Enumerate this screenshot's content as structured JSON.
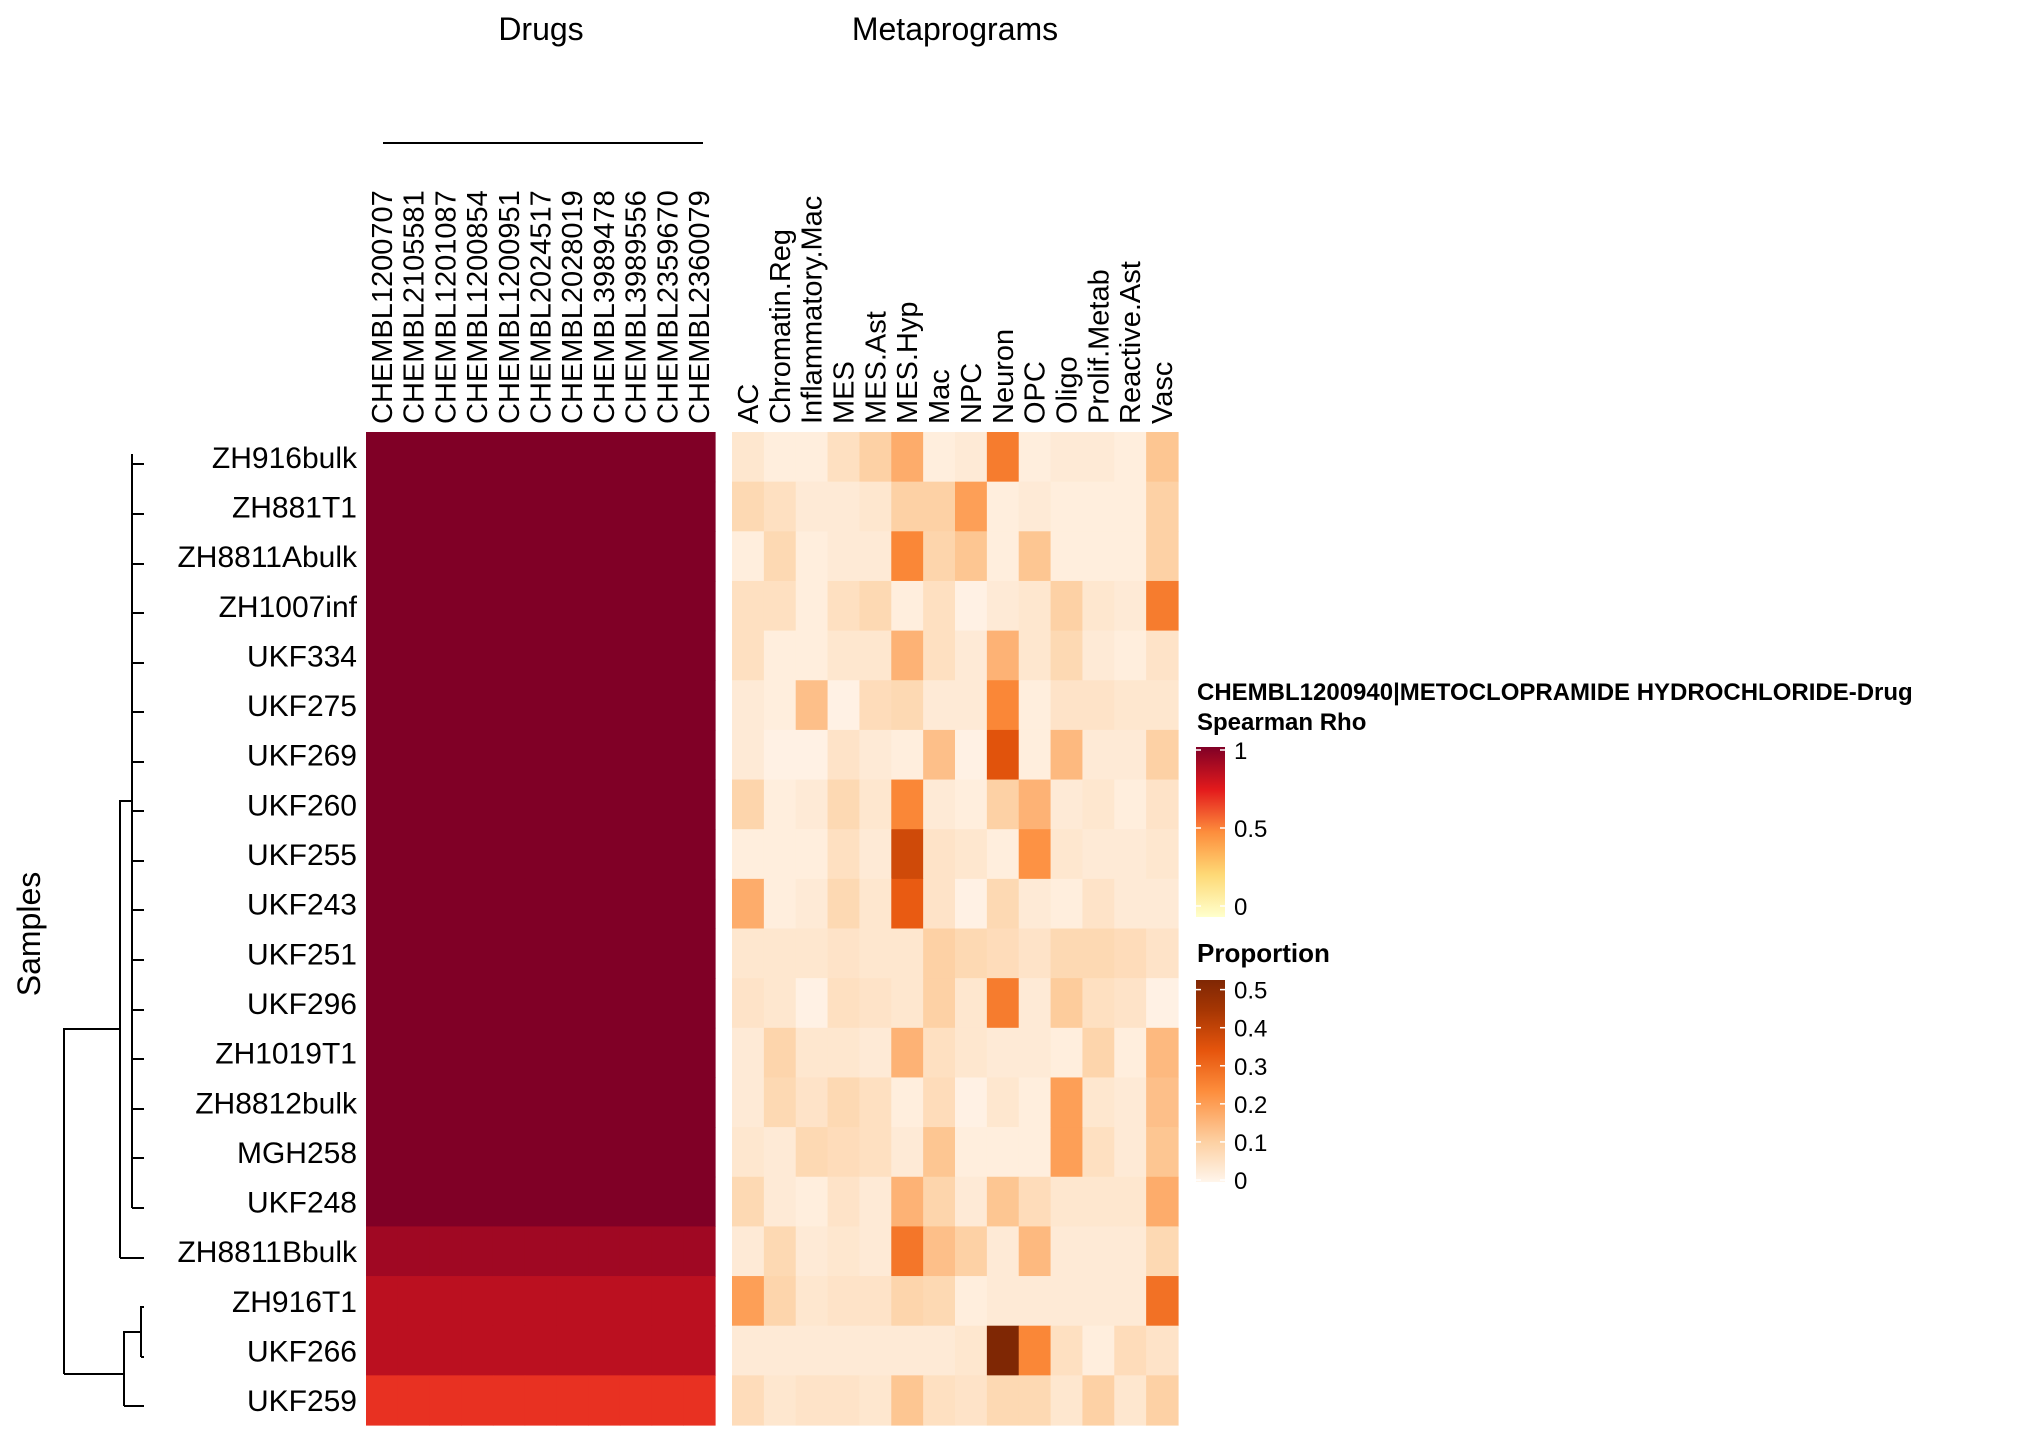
{
  "chart_data": {
    "type": "heatmap",
    "group_titles": {
      "drugs": "Drugs",
      "metaprograms": "Metaprograms"
    },
    "ylabel": "Samples",
    "samples": [
      "ZH916bulk",
      "ZH881T1",
      "ZH8811Abulk",
      "ZH1007inf",
      "UKF334",
      "UKF275",
      "UKF269",
      "UKF260",
      "UKF255",
      "UKF243",
      "UKF251",
      "UKF296",
      "ZH1019T1",
      "ZH8812bulk",
      "MGH258",
      "UKF248",
      "ZH8811Bbulk",
      "ZH916T1",
      "UKF266",
      "UKF259"
    ],
    "drugs": [
      "CHEMBL1200707",
      "CHEMBL2105581",
      "CHEMBL1201087",
      "CHEMBL1200854",
      "CHEMBL1200951",
      "CHEMBL2024517",
      "CHEMBL2028019",
      "CHEMBL3989478",
      "CHEMBL3989556",
      "CHEMBL2359670",
      "CHEMBL2360079"
    ],
    "metaprograms": [
      "AC",
      "Chromatin.Reg",
      "Inflammatory.Mac",
      "MES",
      "MES.Ast",
      "MES.Hyp",
      "Mac",
      "NPC",
      "Neuron",
      "OPC",
      "Oligo",
      "Prolif.Metab",
      "Reactive.Ast",
      "Vasc"
    ],
    "drug_rho": [
      1,
      1,
      1,
      1,
      1,
      1,
      1,
      1,
      1,
      1,
      1,
      1,
      1,
      1,
      1,
      1,
      0.92,
      0.85,
      0.85,
      0.7
    ],
    "proportions": [
      [
        0.04,
        0.02,
        0.02,
        0.06,
        0.1,
        0.16,
        0.02,
        0.03,
        0.24,
        0.02,
        0.03,
        0.03,
        0.02,
        0.12
      ],
      [
        0.08,
        0.06,
        0.03,
        0.03,
        0.04,
        0.1,
        0.1,
        0.18,
        0.02,
        0.03,
        0.02,
        0.02,
        0.02,
        0.1
      ],
      [
        0.02,
        0.08,
        0.02,
        0.03,
        0.03,
        0.22,
        0.09,
        0.12,
        0.02,
        0.12,
        0.02,
        0.02,
        0.02,
        0.1
      ],
      [
        0.06,
        0.06,
        0.02,
        0.06,
        0.08,
        0.02,
        0.06,
        0.01,
        0.03,
        0.04,
        0.1,
        0.04,
        0.03,
        0.24
      ],
      [
        0.06,
        0.02,
        0.02,
        0.04,
        0.04,
        0.15,
        0.06,
        0.03,
        0.15,
        0.04,
        0.08,
        0.03,
        0.02,
        0.05
      ],
      [
        0.03,
        0.02,
        0.13,
        0.01,
        0.07,
        0.08,
        0.03,
        0.03,
        0.22,
        0.02,
        0.05,
        0.05,
        0.04,
        0.04
      ],
      [
        0.03,
        0.01,
        0.01,
        0.05,
        0.03,
        0.02,
        0.13,
        0.01,
        0.32,
        0.02,
        0.14,
        0.03,
        0.03,
        0.1
      ],
      [
        0.09,
        0.02,
        0.03,
        0.08,
        0.04,
        0.22,
        0.03,
        0.02,
        0.1,
        0.15,
        0.03,
        0.04,
        0.02,
        0.05
      ],
      [
        0.02,
        0.02,
        0.02,
        0.06,
        0.03,
        0.35,
        0.05,
        0.04,
        0.02,
        0.2,
        0.04,
        0.03,
        0.03,
        0.04
      ],
      [
        0.16,
        0.02,
        0.03,
        0.08,
        0.04,
        0.3,
        0.05,
        0.01,
        0.08,
        0.03,
        0.02,
        0.05,
        0.03,
        0.03
      ],
      [
        0.04,
        0.04,
        0.04,
        0.05,
        0.04,
        0.04,
        0.1,
        0.08,
        0.07,
        0.05,
        0.08,
        0.08,
        0.07,
        0.05
      ],
      [
        0.05,
        0.04,
        0.01,
        0.06,
        0.05,
        0.04,
        0.1,
        0.04,
        0.24,
        0.03,
        0.11,
        0.06,
        0.05,
        0.01
      ],
      [
        0.03,
        0.09,
        0.04,
        0.04,
        0.03,
        0.15,
        0.06,
        0.04,
        0.03,
        0.03,
        0.02,
        0.09,
        0.02,
        0.14
      ],
      [
        0.03,
        0.08,
        0.05,
        0.08,
        0.06,
        0.02,
        0.07,
        0.01,
        0.04,
        0.02,
        0.18,
        0.04,
        0.03,
        0.13
      ],
      [
        0.04,
        0.03,
        0.08,
        0.07,
        0.06,
        0.03,
        0.12,
        0.02,
        0.02,
        0.02,
        0.18,
        0.06,
        0.03,
        0.12
      ],
      [
        0.08,
        0.03,
        0.02,
        0.05,
        0.03,
        0.15,
        0.09,
        0.03,
        0.12,
        0.07,
        0.04,
        0.04,
        0.04,
        0.16
      ],
      [
        0.03,
        0.08,
        0.03,
        0.04,
        0.03,
        0.25,
        0.13,
        0.1,
        0.03,
        0.14,
        0.03,
        0.03,
        0.03,
        0.08
      ],
      [
        0.18,
        0.09,
        0.04,
        0.05,
        0.05,
        0.09,
        0.08,
        0.02,
        0.03,
        0.03,
        0.03,
        0.03,
        0.03,
        0.26
      ],
      [
        0.03,
        0.03,
        0.03,
        0.03,
        0.03,
        0.03,
        0.03,
        0.04,
        0.52,
        0.22,
        0.06,
        0.02,
        0.07,
        0.05
      ],
      [
        0.07,
        0.04,
        0.05,
        0.05,
        0.04,
        0.12,
        0.06,
        0.05,
        0.08,
        0.08,
        0.04,
        0.1,
        0.04,
        0.1
      ]
    ],
    "legend_rho": {
      "title_line1": "CHEMBL1200940|METOCLOPRAMIDE HYDROCHLORIDE-Drug",
      "title_line2": "Spearman Rho",
      "ticks": [
        "1",
        "0.5",
        "0"
      ],
      "range": [
        0,
        1
      ]
    },
    "legend_prop": {
      "title": "Proportion",
      "ticks": [
        "0.5",
        "0.4",
        "0.3",
        "0.2",
        "0.1",
        "0"
      ],
      "range": [
        0,
        0.52
      ]
    },
    "colors": {
      "rho_scale": [
        "#ffffcc",
        "#fed976",
        "#fd8d3c",
        "#e31a1c",
        "#800026"
      ],
      "prop_scale": [
        "#fff5eb",
        "#fdd0a2",
        "#fd8d3c",
        "#e6550d",
        "#a63603",
        "#7f2704"
      ],
      "dendrogram": "#000000"
    }
  }
}
